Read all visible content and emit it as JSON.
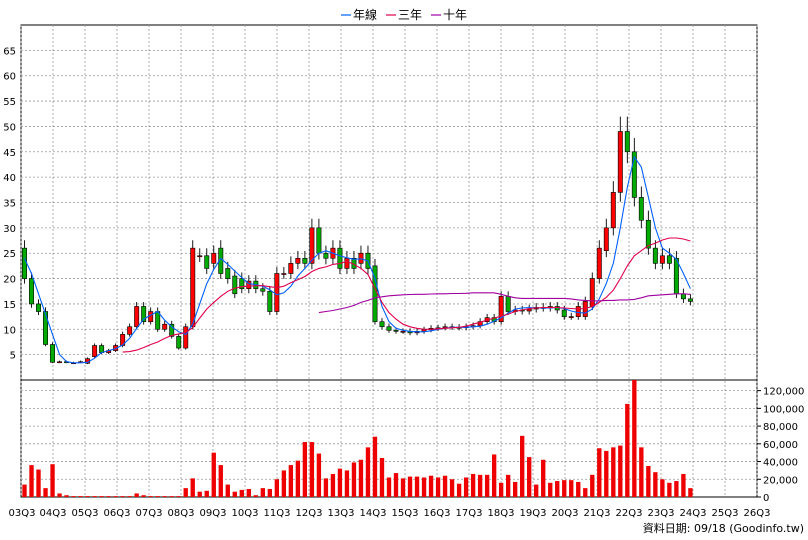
{
  "chart_data": {
    "type": "candlestick",
    "legend": [
      {
        "name": "年線",
        "color": "#0060ff"
      },
      {
        "name": "三年",
        "color": "#e0004a"
      },
      {
        "name": "十年",
        "color": "#a000a0"
      }
    ],
    "legend_placement": "top-center",
    "grid": true,
    "price_axis": {
      "ticks": [
        5,
        10,
        15,
        20,
        25,
        30,
        35,
        40,
        45,
        50,
        55,
        60,
        65
      ],
      "range": [
        0,
        70
      ],
      "position": "left"
    },
    "volume_axis": {
      "ticks": [
        0,
        20000,
        40000,
        60000,
        80000,
        100000,
        120000
      ],
      "tick_labels": [
        "0",
        "20,000",
        "40,000",
        "60,000",
        "80,000",
        "100,000",
        "120,000"
      ],
      "range": [
        0,
        132000
      ],
      "position": "right"
    },
    "x_tick_labels": [
      "03Q3",
      "04Q3",
      "05Q3",
      "06Q3",
      "07Q3",
      "08Q3",
      "09Q3",
      "10Q3",
      "11Q3",
      "12Q3",
      "13Q3",
      "14Q3",
      "15Q3",
      "16Q3",
      "17Q3",
      "18Q3",
      "19Q3",
      "20Q3",
      "21Q3",
      "22Q3",
      "23Q3",
      "24Q3",
      "25Q3",
      "26Q3"
    ],
    "up_color": "#ff0000",
    "down_color": "#00aa00",
    "volume_color": "#ee0000",
    "periods": 105,
    "open": [
      26,
      20,
      15,
      13.5,
      7,
      3.5,
      3.6,
      3.4,
      3.5,
      3.3,
      4.6,
      6.8,
      5.4,
      5.8,
      6.8,
      9,
      10.5,
      14.5,
      11.5,
      13.5,
      10,
      11,
      8.6,
      6.3,
      10.5,
      24.5,
      24.5,
      23,
      26,
      22,
      20.5,
      20,
      18,
      19.5,
      18,
      17.5,
      13.5,
      21,
      21,
      23,
      24,
      23,
      30,
      25,
      24,
      26,
      22,
      24,
      23,
      25,
      22.5,
      11.5,
      10.5,
      9.8,
      9.6,
      9.6,
      9.3,
      9.6,
      9.9,
      10.2,
      10.3,
      10.5,
      10.4,
      10.3,
      10.5,
      10.7,
      11.5,
      12.3,
      11.5,
      16.5,
      13.5,
      13.8,
      13.6,
      14,
      14.3,
      14.2,
      14.5,
      13.8,
      12.5,
      12.5,
      12.5,
      14.5,
      20,
      25.5,
      30,
      37,
      49,
      45,
      36,
      31.5,
      26,
      23,
      24.5,
      24,
      17,
      16
    ],
    "close": [
      20,
      15,
      13.5,
      7,
      3.5,
      3.6,
      3.5,
      3.4,
      3.6,
      4.2,
      6.8,
      5.4,
      5.8,
      6.8,
      9,
      10.5,
      14.5,
      11.5,
      13.5,
      10,
      11,
      8.6,
      6.3,
      10.5,
      26,
      24.5,
      22,
      25,
      21,
      20,
      17,
      18,
      19.5,
      18,
      17.5,
      13.5,
      21,
      21,
      23,
      24,
      23,
      30,
      25,
      24,
      26,
      22,
      24,
      22,
      25,
      22,
      11.5,
      10.5,
      9.8,
      9.6,
      9.6,
      9.3,
      9.6,
      9.9,
      10.2,
      10.3,
      10.5,
      10.4,
      10.3,
      10.5,
      10.7,
      11.5,
      12.3,
      11.5,
      16.5,
      13.5,
      13.8,
      13.6,
      14,
      14.3,
      14.2,
      14.5,
      13.8,
      12.5,
      12.5,
      14.5,
      15.5,
      20,
      26,
      30,
      37,
      49,
      45,
      36,
      31.5,
      26,
      23,
      24.5,
      23,
      17,
      16,
      15.5
    ],
    "volume": [
      14000,
      36000,
      31000,
      10000,
      37000,
      4000,
      2000,
      1000,
      1000,
      1000,
      1000,
      1000,
      1000,
      1000,
      1000,
      1000,
      4000,
      2000,
      1000,
      1000,
      1000,
      1000,
      1000,
      10000,
      21000,
      6000,
      7000,
      50000,
      36000,
      14000,
      6000,
      8000,
      9000,
      2000,
      10000,
      9000,
      20000,
      30000,
      36000,
      41000,
      62000,
      62000,
      49000,
      21000,
      26000,
      32000,
      30000,
      39000,
      42000,
      56000,
      68000,
      44000,
      22000,
      27000,
      21000,
      23000,
      23000,
      22000,
      24000,
      22000,
      24000,
      20000,
      15000,
      22000,
      26000,
      25000,
      25000,
      48000,
      16000,
      25000,
      17000,
      69000,
      45000,
      14000,
      42000,
      16000,
      18000,
      19000,
      19000,
      17000,
      10000,
      25000,
      55000,
      52000,
      56000,
      58000,
      105000,
      132000,
      56000,
      35000,
      28000,
      20000,
      16000,
      18000,
      26000,
      10000
    ],
    "ma_year": [
      24,
      21,
      17,
      13,
      9,
      5,
      3.6,
      3.4,
      3.4,
      3.5,
      4.3,
      5.4,
      5.8,
      6.2,
      6.9,
      8.2,
      10.2,
      12,
      12.8,
      13.5,
      11.8,
      10.5,
      9.5,
      9,
      11,
      15,
      19,
      21.8,
      24,
      22.8,
      21.5,
      20.2,
      19,
      18.8,
      18.5,
      17.8,
      16.8,
      17.2,
      18.5,
      20.5,
      22,
      23.6,
      25,
      25.5,
      25,
      24.5,
      24.1,
      23.8,
      23.9,
      23.5,
      20,
      14.5,
      11.5,
      10.2,
      9.8,
      9.6,
      9.5,
      9.5,
      9.7,
      10,
      10.2,
      10.4,
      10.4,
      10.4,
      10.5,
      10.6,
      11,
      11.6,
      12.3,
      13.2,
      14,
      14.2,
      14.3,
      14.2,
      14.2,
      14.2,
      14.3,
      14.1,
      13.6,
      13.3,
      13.2,
      14,
      16,
      19,
      23,
      30,
      38,
      44,
      42,
      36,
      30,
      26,
      25,
      23.8,
      21,
      18
    ],
    "ma_3yr": [
      null,
      null,
      null,
      null,
      null,
      null,
      null,
      null,
      null,
      null,
      null,
      null,
      null,
      null,
      5.5,
      5.6,
      5.9,
      6.4,
      7,
      7.5,
      8.2,
      8.8,
      9.1,
      9.4,
      10.3,
      12.2,
      14,
      15.3,
      16.5,
      17.5,
      18.1,
      18.4,
      18.5,
      18.6,
      18.6,
      18.4,
      18.2,
      18.5,
      19.2,
      19.8,
      20.4,
      21.4,
      22,
      22.3,
      22.8,
      23,
      23.4,
      22.8,
      22,
      20.8,
      18,
      15.3,
      13.3,
      12,
      11,
      10.5,
      10.2,
      10,
      10,
      10.1,
      10.2,
      10.3,
      10.4,
      10.6,
      11,
      11.4,
      11.8,
      12.2,
      12.6,
      13,
      13.5,
      13.8,
      14.1,
      14.2,
      14.3,
      14.3,
      14.3,
      14.2,
      14.1,
      14,
      14.1,
      14.5,
      15.3,
      16.3,
      17.7,
      20,
      22.5,
      24.5,
      25.5,
      26.5,
      27,
      27.6,
      28,
      28,
      27.8,
      27.4
    ],
    "ma_10yr": [
      null,
      null,
      null,
      null,
      null,
      null,
      null,
      null,
      null,
      null,
      null,
      null,
      null,
      null,
      null,
      null,
      null,
      null,
      null,
      null,
      null,
      null,
      null,
      null,
      null,
      null,
      null,
      null,
      null,
      null,
      null,
      null,
      null,
      null,
      null,
      null,
      null,
      null,
      null,
      null,
      null,
      null,
      13.3,
      13.5,
      13.7,
      14,
      14.3,
      14.7,
      15.3,
      15.7,
      16.2,
      16.4,
      16.6,
      16.7,
      16.8,
      16.85,
      16.9,
      16.9,
      16.95,
      17,
      17,
      17.05,
      17.05,
      17.1,
      17.2,
      17.2,
      17.2,
      17.2,
      16.9,
      16.5,
      16.2,
      16.1,
      16.1,
      16.1,
      16.1,
      16.1,
      16.1,
      16.1,
      16,
      15.8,
      15.7,
      15.6,
      15.6,
      15.7,
      15.7,
      15.8,
      15.8,
      15.9,
      16.2,
      16.6,
      16.7,
      16.8,
      16.9,
      17,
      17,
      16.9
    ],
    "footer": "資料日期: 09/18 (Goodinfo.tw)"
  }
}
